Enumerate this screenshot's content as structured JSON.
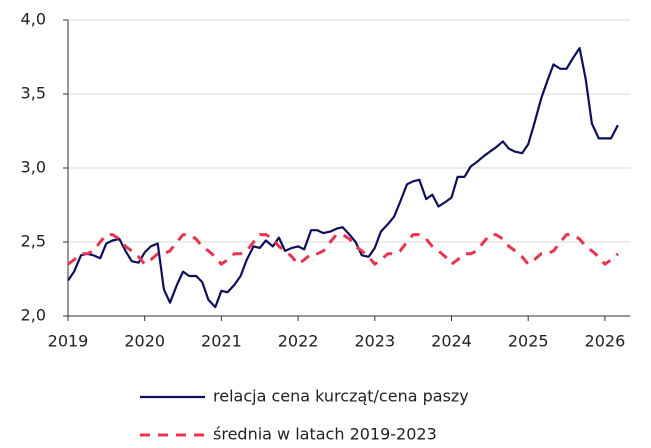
{
  "chart_data": {
    "type": "line",
    "x": [
      2019.0,
      2019.08,
      2019.17,
      2019.25,
      2019.33,
      2019.42,
      2019.5,
      2019.58,
      2019.67,
      2019.75,
      2019.83,
      2019.92,
      2020.0,
      2020.08,
      2020.17,
      2020.25,
      2020.33,
      2020.42,
      2020.5,
      2020.58,
      2020.67,
      2020.75,
      2020.83,
      2020.92,
      2021.0,
      2021.08,
      2021.17,
      2021.25,
      2021.33,
      2021.42,
      2021.5,
      2021.58,
      2021.67,
      2021.75,
      2021.83,
      2021.92,
      2022.0,
      2022.08,
      2022.17,
      2022.25,
      2022.33,
      2022.42,
      2022.5,
      2022.58,
      2022.67,
      2022.75,
      2022.83,
      2022.92,
      2023.0,
      2023.08,
      2023.17,
      2023.25,
      2023.33,
      2023.42,
      2023.5,
      2023.58,
      2023.67,
      2023.75,
      2023.83,
      2023.92,
      2024.0,
      2024.08,
      2024.17,
      2024.25,
      2024.33,
      2024.42,
      2024.5,
      2024.58,
      2024.67,
      2024.75,
      2024.83,
      2024.92,
      2025.0,
      2025.08,
      2025.17,
      2025.25,
      2025.33,
      2025.42,
      2025.5,
      2025.58,
      2025.67,
      2025.75,
      2025.83,
      2025.92,
      2026.0,
      2026.08,
      2026.17
    ],
    "series": [
      {
        "name": "relacja cena kurcząt/cena paszy",
        "color": "#0d0f5c",
        "dash": false,
        "values": [
          2.24,
          2.3,
          2.41,
          2.42,
          2.41,
          2.39,
          2.49,
          2.51,
          2.52,
          2.44,
          2.37,
          2.36,
          2.43,
          2.47,
          2.49,
          2.18,
          2.09,
          2.21,
          2.3,
          2.27,
          2.27,
          2.23,
          2.11,
          2.06,
          2.17,
          2.16,
          2.21,
          2.27,
          2.38,
          2.47,
          2.46,
          2.51,
          2.47,
          2.53,
          2.44,
          2.46,
          2.47,
          2.45,
          2.58,
          2.58,
          2.56,
          2.57,
          2.59,
          2.6,
          2.55,
          2.5,
          2.41,
          2.4,
          2.46,
          2.57,
          2.62,
          2.67,
          2.77,
          2.89,
          2.91,
          2.92,
          2.79,
          2.82,
          2.74,
          2.77,
          2.8,
          2.94,
          2.94,
          3.01,
          3.04,
          3.08,
          3.11,
          3.14,
          3.18,
          3.13,
          3.11,
          3.1,
          3.16,
          3.3,
          3.47,
          3.59,
          3.7,
          3.67,
          3.67,
          3.74,
          3.81,
          3.6,
          3.3,
          3.2,
          3.2,
          3.2,
          3.29
        ]
      },
      {
        "name": "średnia w latach 2019-2023",
        "color": "#e8344e",
        "dash": true,
        "values": [
          2.35,
          2.38,
          2.42,
          2.42,
          2.44,
          2.5,
          2.55,
          2.55,
          2.52,
          2.47,
          2.44,
          2.4,
          2.35,
          2.38,
          2.42,
          2.42,
          2.44,
          2.5,
          2.55,
          2.55,
          2.52,
          2.47,
          2.44,
          2.4,
          2.35,
          2.38,
          2.42,
          2.42,
          2.44,
          2.5,
          2.55,
          2.55,
          2.52,
          2.47,
          2.44,
          2.4,
          2.35,
          2.38,
          2.42,
          2.42,
          2.44,
          2.5,
          2.55,
          2.55,
          2.52,
          2.47,
          2.44,
          2.4,
          2.35,
          2.38,
          2.42,
          2.42,
          2.44,
          2.5,
          2.55,
          2.55,
          2.52,
          2.47,
          2.44,
          2.4,
          2.35,
          2.38,
          2.42,
          2.42,
          2.44,
          2.5,
          2.55,
          2.55,
          2.52,
          2.47,
          2.44,
          2.4,
          2.35,
          2.38,
          2.42,
          2.42,
          2.44,
          2.5,
          2.55,
          2.55,
          2.52,
          2.47,
          2.44,
          2.4,
          2.35,
          2.38,
          2.42
        ]
      }
    ],
    "xlim": [
      2019,
      2026.33
    ],
    "xticks": [
      2019,
      2020,
      2021,
      2022,
      2023,
      2024,
      2025,
      2026
    ],
    "ylim": [
      2.0,
      4.0
    ],
    "yticks": [
      {
        "value": 2.0,
        "label": "2,0"
      },
      {
        "value": 2.5,
        "label": "2,5"
      },
      {
        "value": 3.0,
        "label": "3,0"
      },
      {
        "value": 3.5,
        "label": "3,5"
      },
      {
        "value": 4.0,
        "label": "4,0"
      }
    ],
    "grid": true,
    "legend": "bottom"
  }
}
